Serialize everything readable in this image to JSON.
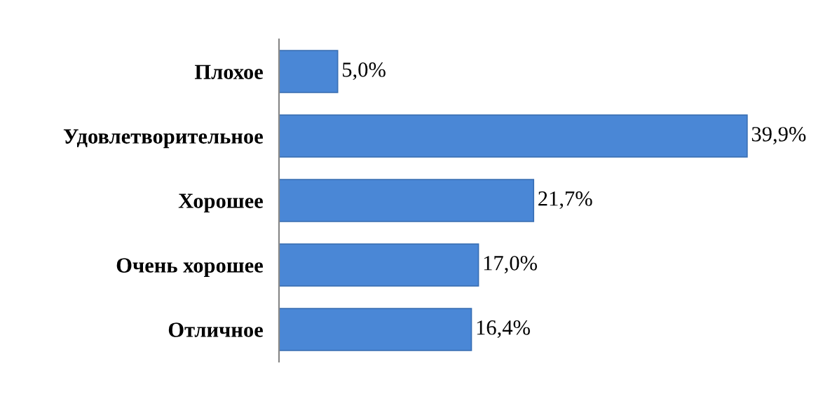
{
  "chart_data": {
    "type": "bar",
    "orientation": "horizontal",
    "categories": [
      "Плохое",
      "Удовлетворительное",
      "Хорошее",
      "Очень хорошее",
      "Отличное"
    ],
    "values": [
      5.0,
      39.9,
      21.7,
      17.0,
      16.4
    ],
    "value_labels": [
      "5,0%",
      "39,9%",
      "21,7%",
      "17,0%",
      "16,4%"
    ],
    "color": "#4a87d6",
    "grid": false,
    "legend": false
  }
}
